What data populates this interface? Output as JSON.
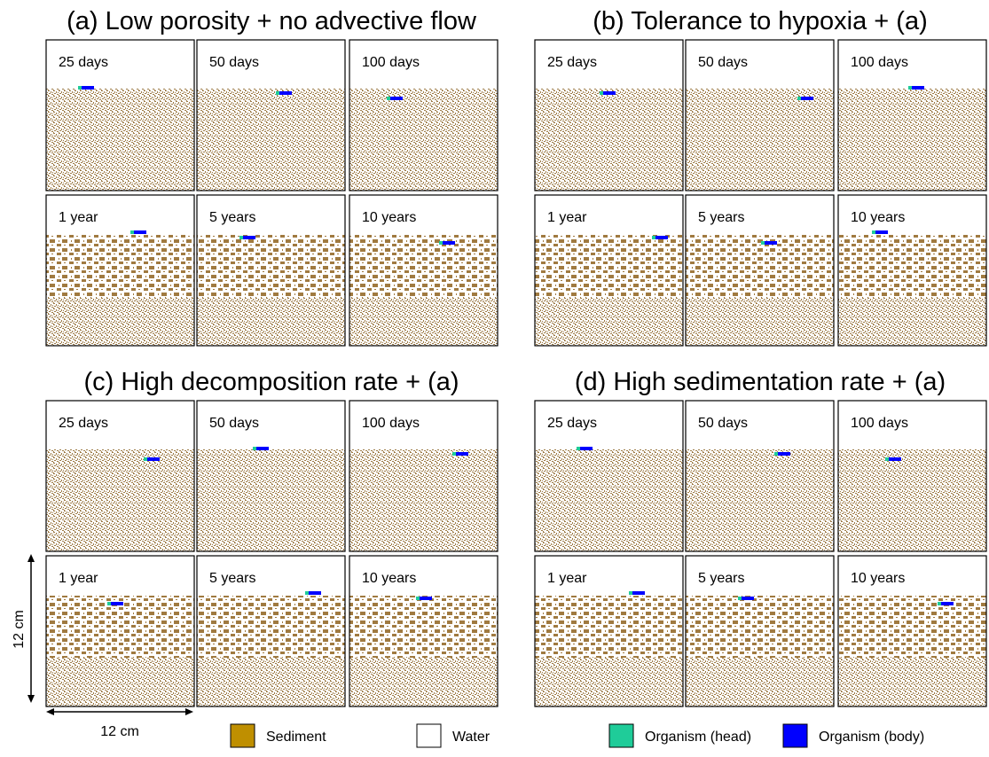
{
  "panels": [
    {
      "title": "(a) Low porosity + no advective flow",
      "frames": [
        "25 days",
        "50 days",
        "100 days",
        "1 year",
        "5 years",
        "10 years"
      ]
    },
    {
      "title": "(b) Tolerance to hypoxia + (a)",
      "frames": [
        "25 days",
        "50 days",
        "100 days",
        "1 year",
        "5 years",
        "10 years"
      ]
    },
    {
      "title": "(c) High decomposition rate + (a)",
      "frames": [
        "25 days",
        "50 days",
        "100 days",
        "1 year",
        "5 years",
        "10 years"
      ]
    },
    {
      "title": "(d) High sedimentation rate + (a)",
      "frames": [
        "25 days",
        "50 days",
        "100 days",
        "1 year",
        "5 years",
        "10 years"
      ]
    }
  ],
  "legend": [
    {
      "label": "Sediment",
      "color": "#bf8f00"
    },
    {
      "label": "Water",
      "color": "#ffffff"
    },
    {
      "label": "Organism (head)",
      "color": "#1fcc99"
    },
    {
      "label": "Organism (body)",
      "color": "#0000ff"
    }
  ],
  "scale": {
    "x": "12 cm",
    "y": "12 cm"
  }
}
